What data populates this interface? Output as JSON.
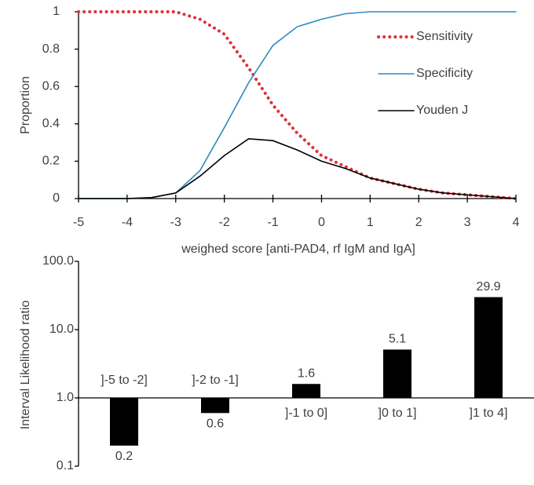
{
  "chart_data": [
    {
      "type": "line",
      "x_label": "weighed score [anti-PAD4, rf IgM and IgA]",
      "y_label": "Proportion",
      "x": [
        -5,
        -4.5,
        -4,
        -3.5,
        -3,
        -2.5,
        -2,
        -1.5,
        -1,
        -0.5,
        0,
        0.5,
        1,
        1.5,
        2,
        2.5,
        3,
        3.5,
        4
      ],
      "series": [
        {
          "name": "Sensitivity",
          "color": "#e0303a",
          "dash": "dotted",
          "values": [
            1,
            1,
            1,
            1,
            1,
            0.96,
            0.88,
            0.7,
            0.5,
            0.35,
            0.23,
            0.17,
            0.11,
            0.08,
            0.05,
            0.03,
            0.02,
            0.01,
            0
          ]
        },
        {
          "name": "Specificity",
          "color": "#2e8bc0",
          "dash": "solid",
          "values": [
            0,
            0,
            0,
            0.005,
            0.03,
            0.15,
            0.38,
            0.62,
            0.82,
            0.92,
            0.96,
            0.99,
            1,
            1,
            1,
            1,
            1,
            1,
            1
          ]
        },
        {
          "name": "Youden J",
          "color": "#000000",
          "dash": "solid",
          "values": [
            0,
            0,
            0,
            0.005,
            0.03,
            0.12,
            0.23,
            0.32,
            0.31,
            0.26,
            0.2,
            0.16,
            0.11,
            0.08,
            0.05,
            0.03,
            0.02,
            0.01,
            0
          ]
        }
      ],
      "xlim": [
        -5,
        4
      ],
      "xticks": [
        -5,
        -4,
        -3,
        -2,
        -1,
        0,
        1,
        2,
        3,
        4
      ],
      "ylim": [
        0,
        1
      ],
      "yticks": [
        0,
        0.2,
        0.4,
        0.6,
        0.8,
        1
      ],
      "legend": "upper right",
      "grid": false
    },
    {
      "type": "bar",
      "y_label": "Interval Likelihood ratio",
      "categories": [
        "]-5 to -2]",
        "]-2 to -1]",
        "]-1 to 0]",
        "]0 to 1]",
        "]1 to 4]"
      ],
      "values": [
        0.2,
        0.6,
        1.6,
        5.1,
        29.9
      ],
      "color": "#000000",
      "yscale": "log",
      "ylim": [
        0.1,
        100
      ],
      "yticks": [
        0.1,
        {
          "value": 1,
          "label": "1.0"
        },
        {
          "value": 10,
          "label": "10.0"
        },
        {
          "value": 100,
          "label": "100.0"
        }
      ],
      "grid": false
    }
  ]
}
